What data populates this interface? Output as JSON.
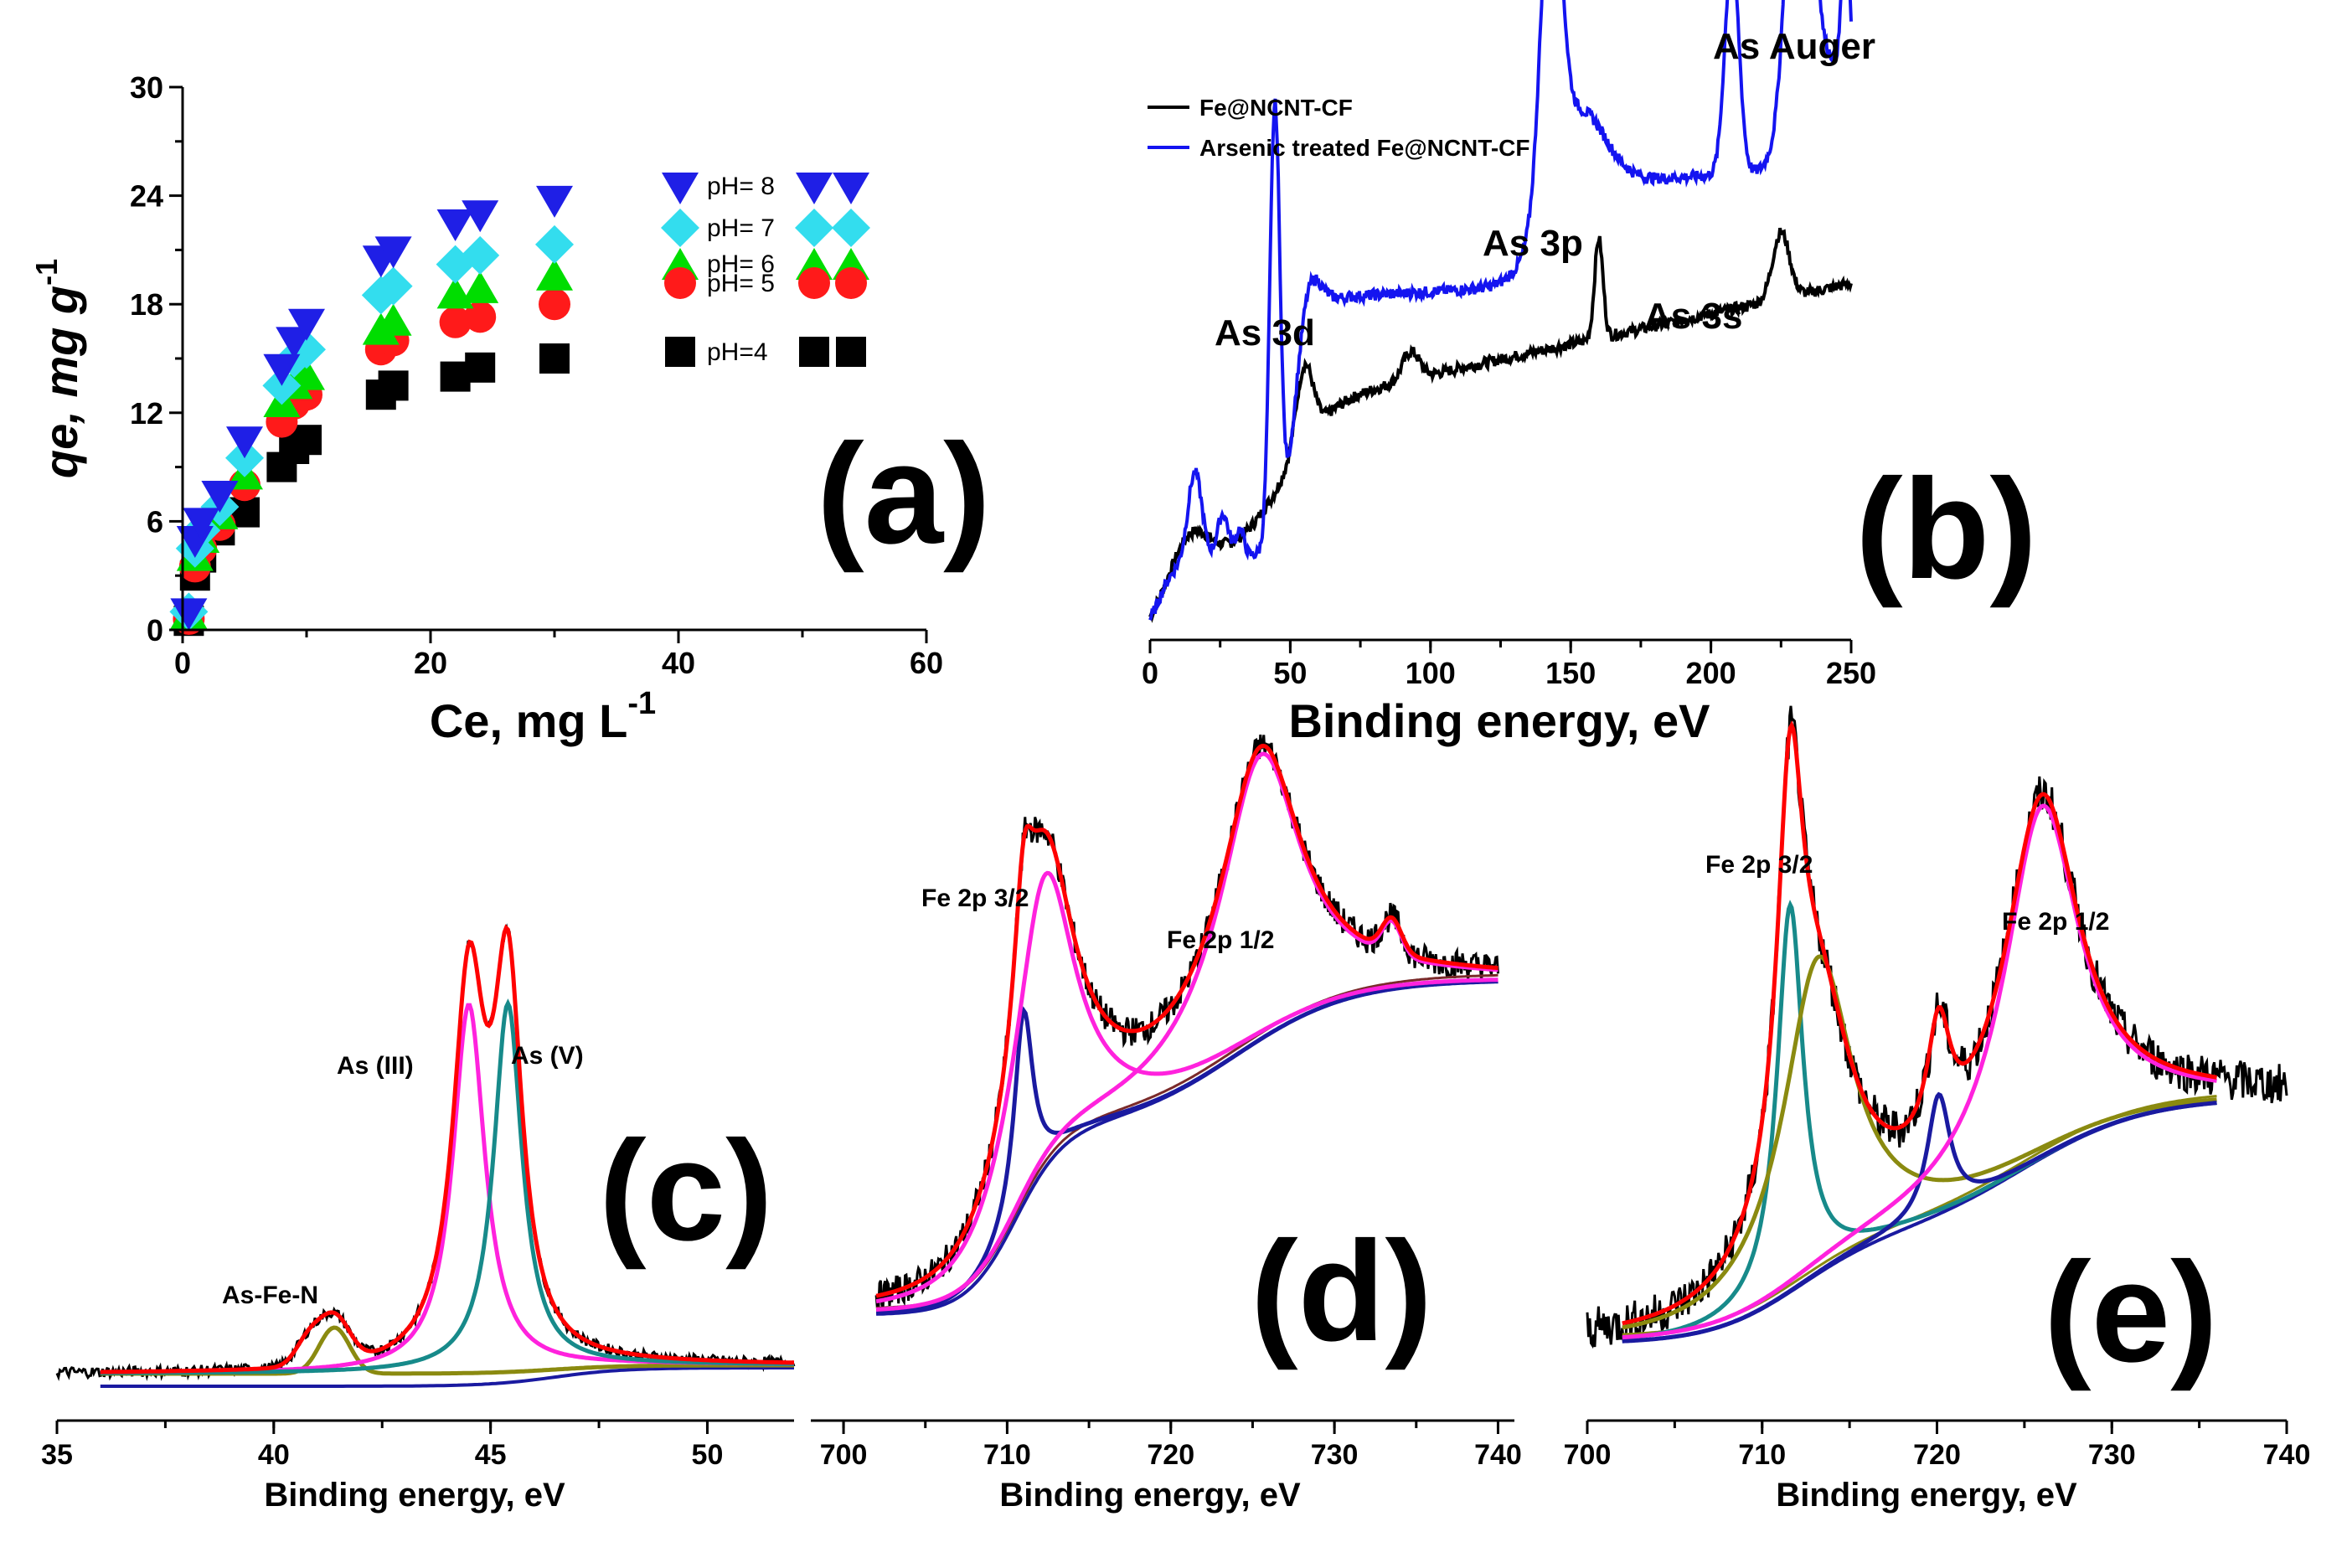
{
  "chart_data": [
    {
      "id": "a",
      "type": "scatter",
      "panel_label": "(a)",
      "xlabel_main": "Ce, mg L",
      "xlabel_sup": "-1",
      "ylabel_main": "qe, mg g",
      "ylabel_sup": "-1",
      "xlim": [
        0,
        60
      ],
      "ylim": [
        0,
        30
      ],
      "xticks": [
        0,
        20,
        40,
        60
      ],
      "yticks": [
        0,
        6,
        12,
        18,
        24,
        30
      ],
      "x": [
        0.5,
        1,
        1.5,
        3,
        5,
        8,
        9,
        10,
        16,
        17,
        22,
        24,
        30
      ],
      "series": [
        {
          "name": "pH= 8",
          "color": "#1f1fe6",
          "marker": "triangle-down",
          "values": [
            1,
            5,
            6,
            7.5,
            10.5,
            14.5,
            16,
            17,
            20.5,
            21,
            22.5,
            23,
            23.8
          ]
        },
        {
          "name": "pH= 7",
          "color": "#33ddee",
          "marker": "diamond",
          "values": [
            1,
            4.5,
            5.5,
            6.8,
            9.5,
            13.5,
            15,
            15.5,
            18.5,
            19,
            20.2,
            20.7,
            21.3
          ]
        },
        {
          "name": "pH= 6",
          "color": "#00dd00",
          "marker": "triangle-up",
          "values": [
            0.8,
            4,
            5,
            6.3,
            8.5,
            12.5,
            13.5,
            14,
            16.5,
            17,
            18.5,
            18.8,
            19.5
          ]
        },
        {
          "name": "pH= 5",
          "color": "#ff1a1a",
          "marker": "circle",
          "values": [
            0.6,
            3.5,
            4.5,
            5.8,
            8,
            11.5,
            12.5,
            13,
            15.5,
            16,
            17,
            17.3,
            18
          ]
        },
        {
          "name": "pH=4",
          "color": "#000000",
          "marker": "square",
          "values": [
            0.5,
            3,
            4,
            5.5,
            6.5,
            9,
            10,
            10.5,
            13,
            13.5,
            14,
            14.5,
            15
          ]
        }
      ]
    },
    {
      "id": "b",
      "type": "line",
      "panel_label": "(b)",
      "xlabel": "Binding energy, eV",
      "xlim": [
        0,
        250
      ],
      "xticks": [
        0,
        50,
        100,
        150,
        200,
        250
      ],
      "series": [
        {
          "name": "Fe@NCNT-CF",
          "color": "#000000"
        },
        {
          "name": "Arsenic treated Fe@NCNT-CF",
          "color": "#1414f0"
        }
      ],
      "annotations": [
        "As 3d",
        "As 3p",
        "As 3s",
        "As Auger"
      ]
    },
    {
      "id": "c",
      "type": "line",
      "panel_label": "(c)",
      "xlabel": "Binding energy, eV",
      "xlim": [
        35,
        52
      ],
      "xticks": [
        35,
        40,
        45,
        50
      ],
      "components": [
        {
          "name": "As (III)",
          "color": "#ff22dd",
          "center": 44.5
        },
        {
          "name": "As (V)",
          "color": "#178a8a",
          "center": 45.4
        },
        {
          "name": "As-Fe-N",
          "color": "#8a8a10",
          "center": 41.4
        }
      ],
      "annotations": [
        "As (III)",
        "As (V)",
        "As-Fe-N"
      ]
    },
    {
      "id": "d",
      "type": "line",
      "panel_label": "(d)",
      "xlabel": "Binding energy, eV",
      "xlim": [
        698,
        741
      ],
      "xticks": [
        700,
        710,
        720,
        730,
        740
      ],
      "components": [
        {
          "name": "Fe 2p 3/2",
          "center": 711
        },
        {
          "name": "Fe 2p 1/2",
          "center": 725.5
        }
      ],
      "annotations": [
        "Fe 2p 3/2",
        "Fe 2p 1/2"
      ]
    },
    {
      "id": "e",
      "type": "line",
      "panel_label": "(e)",
      "xlabel": "Binding energy, eV",
      "xlim": [
        700,
        740
      ],
      "xticks": [
        700,
        710,
        720,
        730,
        740
      ],
      "components": [
        {
          "name": "Fe 2p 3/2",
          "center": 711.5
        },
        {
          "name": "Fe 2p 1/2",
          "center": 726
        }
      ],
      "annotations": [
        "Fe 2p 3/2",
        "Fe 2p 1/2"
      ]
    }
  ]
}
